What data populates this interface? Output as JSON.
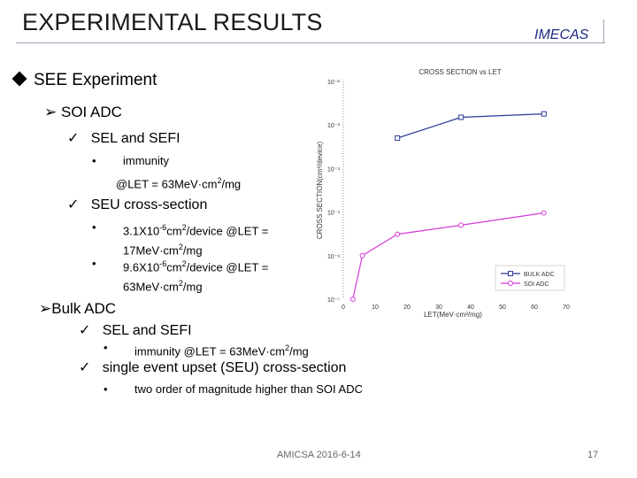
{
  "header": {
    "title": "EXPERIMENTAL RESULTS",
    "org": "IMECAS"
  },
  "section": {
    "heading": "SEE Experiment",
    "soi": {
      "label": "SOI ADC",
      "sel_label": "SEL and SEFI",
      "sel_line1": "immunity",
      "sel_line2_pre": "@LET = 63MeV·cm",
      "sel_line2_post": "/mg",
      "seu_label": "SEU cross-section",
      "b1_line1_pre": "3.1X10",
      "b1_line1_mid": "cm",
      "b1_line1_post": "/device @LET =",
      "b1_line2_pre": "17MeV·cm",
      "b1_line2_post": "/mg",
      "b2_line1_pre": "9.6X10",
      "b2_line1_mid": "cm",
      "b2_line1_post": "/device @LET =",
      "b2_line2_pre": "63MeV·cm",
      "b2_line2_post": "/mg",
      "exp_neg6": "-6",
      "exp_two": "2"
    },
    "bulk": {
      "label": "Bulk ADC",
      "sel_label": "SEL and SEFI",
      "sel_item_pre": "immunity @LET = 63MeV·cm",
      "sel_item_post": "/mg",
      "seu_label": "single event upset (SEU) cross-section",
      "seu_item": "two order of magnitude higher than SOI ADC"
    }
  },
  "footer": {
    "text": "AMICSA 2016-6-14",
    "page": "17"
  },
  "chart_data": {
    "type": "line",
    "title": "CROSS SECTION vs LET",
    "xlabel": "LET(MeV·cm²/mg)",
    "ylabel": "CROSS SECTION(cm²/device)",
    "xlim": [
      0,
      70
    ],
    "ylim": [
      1e-07,
      0.01
    ],
    "yscale": "log",
    "x_ticks": [
      0,
      10,
      20,
      30,
      40,
      50,
      60,
      70
    ],
    "x_tick_labels": [
      "0",
      "10",
      "20",
      "30",
      "40",
      "50",
      "60",
      "70"
    ],
    "y_tick_labels": [
      "10⁻²",
      "10⁻³",
      "10⁻⁴",
      "10⁻⁵",
      "10⁻⁶",
      "10⁻⁷"
    ],
    "legend_position": "bottom-right",
    "series": [
      {
        "name": "BULK ADC",
        "color": "#2b3a9a",
        "marker": "square",
        "x": [
          17,
          37,
          63
        ],
        "y": [
          0.0005,
          0.0015,
          0.0018
        ]
      },
      {
        "name": "SOI ADC",
        "color": "#d63ad6",
        "marker": "circle",
        "x": [
          3,
          6,
          17,
          37,
          63
        ],
        "y": [
          1e-07,
          1e-06,
          3.1e-06,
          5e-06,
          9.6e-06
        ]
      }
    ]
  }
}
